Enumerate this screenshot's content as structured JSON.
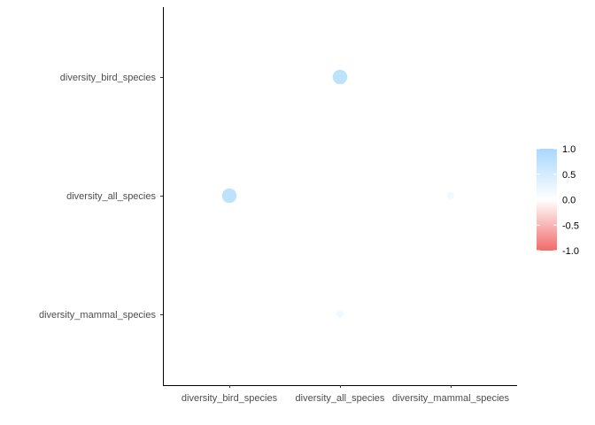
{
  "chart_data": {
    "type": "scatter",
    "subtype": "correlation-bubble",
    "title": "",
    "xlabel": "",
    "ylabel": "",
    "x_categories": [
      "diversity_bird_species",
      "diversity_all_species",
      "diversity_mammal_species"
    ],
    "y_categories": [
      "diversity_mammal_species",
      "diversity_all_species",
      "diversity_bird_species"
    ],
    "points": [
      {
        "x": "diversity_all_species",
        "y": "diversity_bird_species",
        "value": 0.75
      },
      {
        "x": "diversity_bird_species",
        "y": "diversity_all_species",
        "value": 0.75
      },
      {
        "x": "diversity_mammal_species",
        "y": "diversity_all_species",
        "value": 0.15
      },
      {
        "x": "diversity_all_species",
        "y": "diversity_mammal_species",
        "value": 0.15
      }
    ],
    "legend": {
      "placement": "right",
      "range": [
        -1.0,
        1.0
      ],
      "ticks": [
        "1.0",
        "0.5",
        "0.0",
        "-0.5",
        "-1.0"
      ],
      "color_high": "#a9d8fb",
      "color_mid": "#ffffff",
      "color_low": "#f26b6b"
    },
    "grid": false
  }
}
